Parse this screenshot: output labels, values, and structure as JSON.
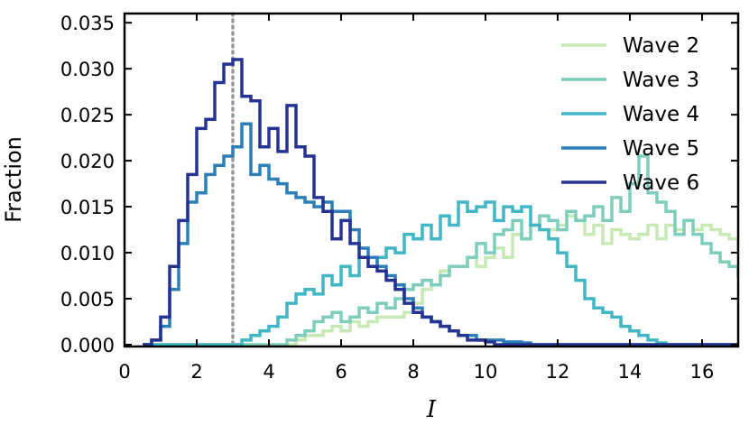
{
  "chart_data": {
    "type": "line",
    "style": "step-histogram",
    "title": "",
    "xlabel": "I",
    "ylabel": "Fraction",
    "xlim": [
      0,
      17
    ],
    "ylim": [
      0,
      0.036
    ],
    "xticks": [
      0,
      2,
      4,
      6,
      8,
      10,
      12,
      14,
      16
    ],
    "yticks": [
      0.0,
      0.005,
      0.01,
      0.015,
      0.02,
      0.025,
      0.03,
      0.035
    ],
    "ytick_labels": [
      "0.000",
      "0.005",
      "0.010",
      "0.015",
      "0.020",
      "0.025",
      "0.030",
      "0.035"
    ],
    "grid": false,
    "legend_position": "top-right",
    "reference_line": {
      "x": 3,
      "style": "dotted",
      "color": "#999999"
    },
    "bin_width": 0.25,
    "bin_start": 0.5,
    "series": [
      {
        "name": "Wave 2",
        "color": "#c7e9b4",
        "values": [
          0,
          0,
          0,
          0,
          0,
          0,
          0,
          0,
          0,
          0,
          0,
          0,
          0,
          0,
          0,
          0,
          0,
          0.0005,
          0.001,
          0.001,
          0.0015,
          0.002,
          0.0015,
          0.0025,
          0.002,
          0.0025,
          0.003,
          0.003,
          0.003,
          0.0035,
          0.0045,
          0.006,
          0.0065,
          0.008,
          0.0085,
          0.0085,
          0.0095,
          0.0085,
          0.0095,
          0.0105,
          0.0095,
          0.012,
          0.0115,
          0.013,
          0.0125,
          0.0125,
          0.013,
          0.014,
          0.0135,
          0.012,
          0.013,
          0.011,
          0.0125,
          0.012,
          0.0115,
          0.012,
          0.013,
          0.0115,
          0.013,
          0.0125,
          0.0135,
          0.0125,
          0.013,
          0.0125,
          0.012,
          0.0115,
          0.0105,
          0.0095,
          0.009
        ]
      },
      {
        "name": "Wave 3",
        "color": "#7fcdbb",
        "values": [
          0,
          0,
          0,
          0,
          0,
          0,
          0,
          0,
          0,
          0,
          0,
          0,
          0,
          0,
          0,
          0,
          0.0005,
          0.001,
          0.0015,
          0.0025,
          0.003,
          0.0035,
          0.0025,
          0.003,
          0.004,
          0.0035,
          0.0045,
          0.004,
          0.005,
          0.006,
          0.0065,
          0.007,
          0.0065,
          0.0075,
          0.0085,
          0.0085,
          0.0095,
          0.011,
          0.01,
          0.012,
          0.0125,
          0.0135,
          0.0115,
          0.013,
          0.014,
          0.0135,
          0.0125,
          0.0145,
          0.0135,
          0.014,
          0.015,
          0.0135,
          0.016,
          0.0145,
          0.0175,
          0.0205,
          0.0165,
          0.0155,
          0.0145,
          0.012,
          0.0135,
          0.012,
          0.011,
          0.01,
          0.009,
          0.0085,
          0.0075,
          0.0065,
          0.0055
        ]
      },
      {
        "name": "Wave 4",
        "color": "#41b6c4",
        "values": [
          0,
          0,
          0,
          0,
          0,
          0,
          0,
          0,
          0,
          0,
          0,
          0.0005,
          0.001,
          0.0015,
          0.002,
          0.003,
          0.0045,
          0.0055,
          0.006,
          0.0055,
          0.0075,
          0.0065,
          0.0085,
          0.0075,
          0.0095,
          0.0085,
          0.0095,
          0.0105,
          0.01,
          0.012,
          0.0115,
          0.013,
          0.0115,
          0.014,
          0.013,
          0.0155,
          0.0145,
          0.015,
          0.0155,
          0.0135,
          0.015,
          0.0145,
          0.015,
          0.013,
          0.0125,
          0.0115,
          0.01,
          0.0085,
          0.007,
          0.005,
          0.004,
          0.0035,
          0.003,
          0.002,
          0.0015,
          0.001,
          0.0005,
          0.0002,
          0,
          0,
          0,
          0,
          0,
          0,
          0,
          0,
          0,
          0,
          0
        ]
      },
      {
        "name": "Wave 5",
        "color": "#2c7fb8",
        "values": [
          0,
          0.0005,
          0.002,
          0.006,
          0.011,
          0.0155,
          0.0165,
          0.0185,
          0.0195,
          0.0205,
          0.0215,
          0.024,
          0.0185,
          0.0195,
          0.018,
          0.0175,
          0.0165,
          0.016,
          0.0155,
          0.015,
          0.0155,
          0.0145,
          0.0145,
          0.0125,
          0.0105,
          0.0095,
          0.0085,
          0.0075,
          0.0065,
          0.005,
          0.004,
          0.003,
          0.0025,
          0.002,
          0.0015,
          0.001,
          0.001,
          0.0005,
          0.0005,
          0.0005,
          0.0003,
          0.0003,
          0.0002,
          0,
          0,
          0,
          0,
          0,
          0,
          0,
          0,
          0,
          0,
          0,
          0,
          0,
          0,
          0,
          0,
          0,
          0,
          0,
          0,
          0,
          0,
          0,
          0,
          0,
          0
        ]
      },
      {
        "name": "Wave 6",
        "color": "#253494",
        "values": [
          0,
          0.0005,
          0.003,
          0.0085,
          0.0135,
          0.0185,
          0.0235,
          0.0245,
          0.0285,
          0.0305,
          0.031,
          0.027,
          0.0265,
          0.0215,
          0.0235,
          0.021,
          0.026,
          0.0215,
          0.0205,
          0.016,
          0.0145,
          0.0115,
          0.0135,
          0.011,
          0.0095,
          0.0085,
          0.008,
          0.007,
          0.006,
          0.0045,
          0.0035,
          0.003,
          0.0025,
          0.002,
          0.0015,
          0.001,
          0.0005,
          0.0005,
          0.0003,
          0,
          0,
          0,
          0,
          0,
          0,
          0,
          0,
          0,
          0,
          0,
          0,
          0,
          0,
          0,
          0,
          0,
          0,
          0,
          0,
          0,
          0,
          0,
          0,
          0,
          0,
          0,
          0,
          0,
          0
        ]
      }
    ]
  }
}
